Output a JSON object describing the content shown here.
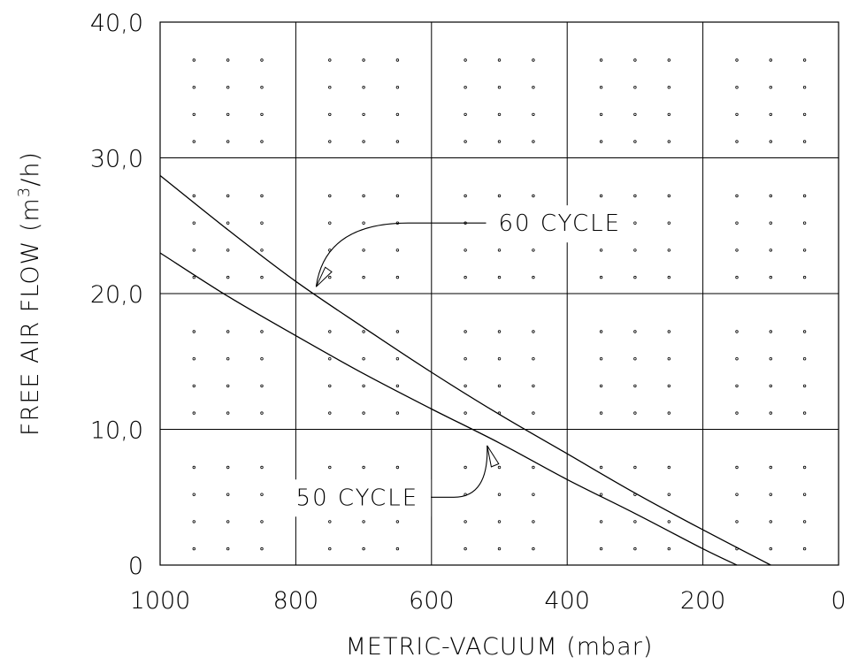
{
  "chart_data": {
    "type": "line",
    "title": "",
    "xlabel": "METRIC-VACUUM (mbar)",
    "ylabel": "FREE AIR FLOW (m3/h)",
    "ylabel_parts": {
      "pre": "FREE AIR FLOW (m",
      "sup": "3",
      "post": "/h)"
    },
    "xlim": [
      1000,
      0
    ],
    "ylim": [
      0,
      40
    ],
    "x_ticks": [
      1000,
      800,
      600,
      400,
      200,
      0
    ],
    "x_tick_labels": [
      "1000",
      "800",
      "600",
      "400",
      "200",
      "0"
    ],
    "y_ticks": [
      0,
      10,
      20,
      30,
      40
    ],
    "y_tick_labels": [
      "0",
      "10,0",
      "20,0",
      "30,0",
      "40,0"
    ],
    "grid": true,
    "background_dots": true,
    "line_color": "#000000",
    "series": [
      {
        "name": "60 CYCLE",
        "x": [
          1000,
          900,
          800,
          700,
          600,
          500,
          400,
          300,
          200,
          100
        ],
        "y": [
          28.7,
          24.7,
          20.9,
          17.5,
          14.2,
          11.1,
          8.2,
          5.3,
          2.6,
          0
        ]
      },
      {
        "name": "50 CYCLE",
        "x": [
          1000,
          900,
          800,
          700,
          600,
          500,
          400,
          300,
          200,
          150
        ],
        "y": [
          23.0,
          19.8,
          16.9,
          14.1,
          11.5,
          9.0,
          6.3,
          3.8,
          1.2,
          0
        ]
      }
    ],
    "annotations": [
      {
        "text": "60 CYCLE",
        "series": "60 CYCLE",
        "arrow_to": [
          770,
          20.5
        ],
        "label_anchor": [
          530,
          25.2
        ],
        "align": "left"
      },
      {
        "text": "50 CYCLE",
        "series": "50 CYCLE",
        "arrow_to": [
          518,
          8.8
        ],
        "label_anchor": [
          580,
          5.0
        ],
        "align": "right"
      }
    ]
  }
}
